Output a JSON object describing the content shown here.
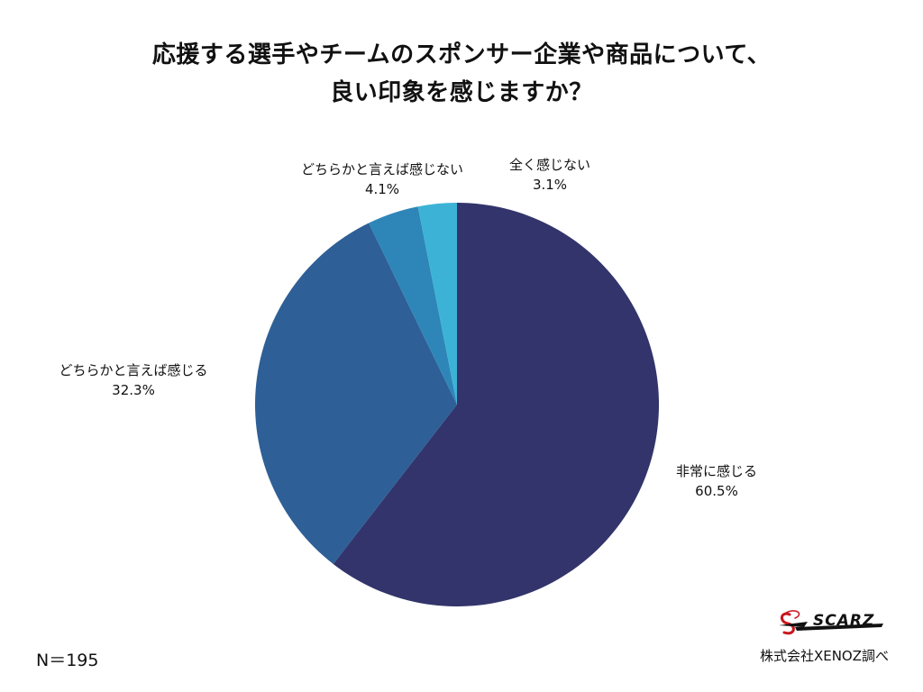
{
  "chart_data": {
    "type": "pie",
    "title_line1": "応援する選手やチームのスポンサー企業や商品について、",
    "title_line2": "良い印象を感じますか？",
    "slices": [
      {
        "label": "非常に感じる",
        "value": 60.5,
        "display": "60.5%",
        "color": "#32346B"
      },
      {
        "label": "どちらかと言えば感じる",
        "value": 32.3,
        "display": "32.3%",
        "color": "#2E5F97"
      },
      {
        "label": "どちらかと言えば感じない",
        "value": 4.1,
        "display": "4.1%",
        "color": "#2E86B8"
      },
      {
        "label": "全く感じない",
        "value": 3.1,
        "display": "3.1%",
        "color": "#3CB3D6"
      }
    ]
  },
  "footer": {
    "sample_size": "N＝195",
    "source": "株式会社XENOZ調べ",
    "logo_text": "SCARZ"
  }
}
